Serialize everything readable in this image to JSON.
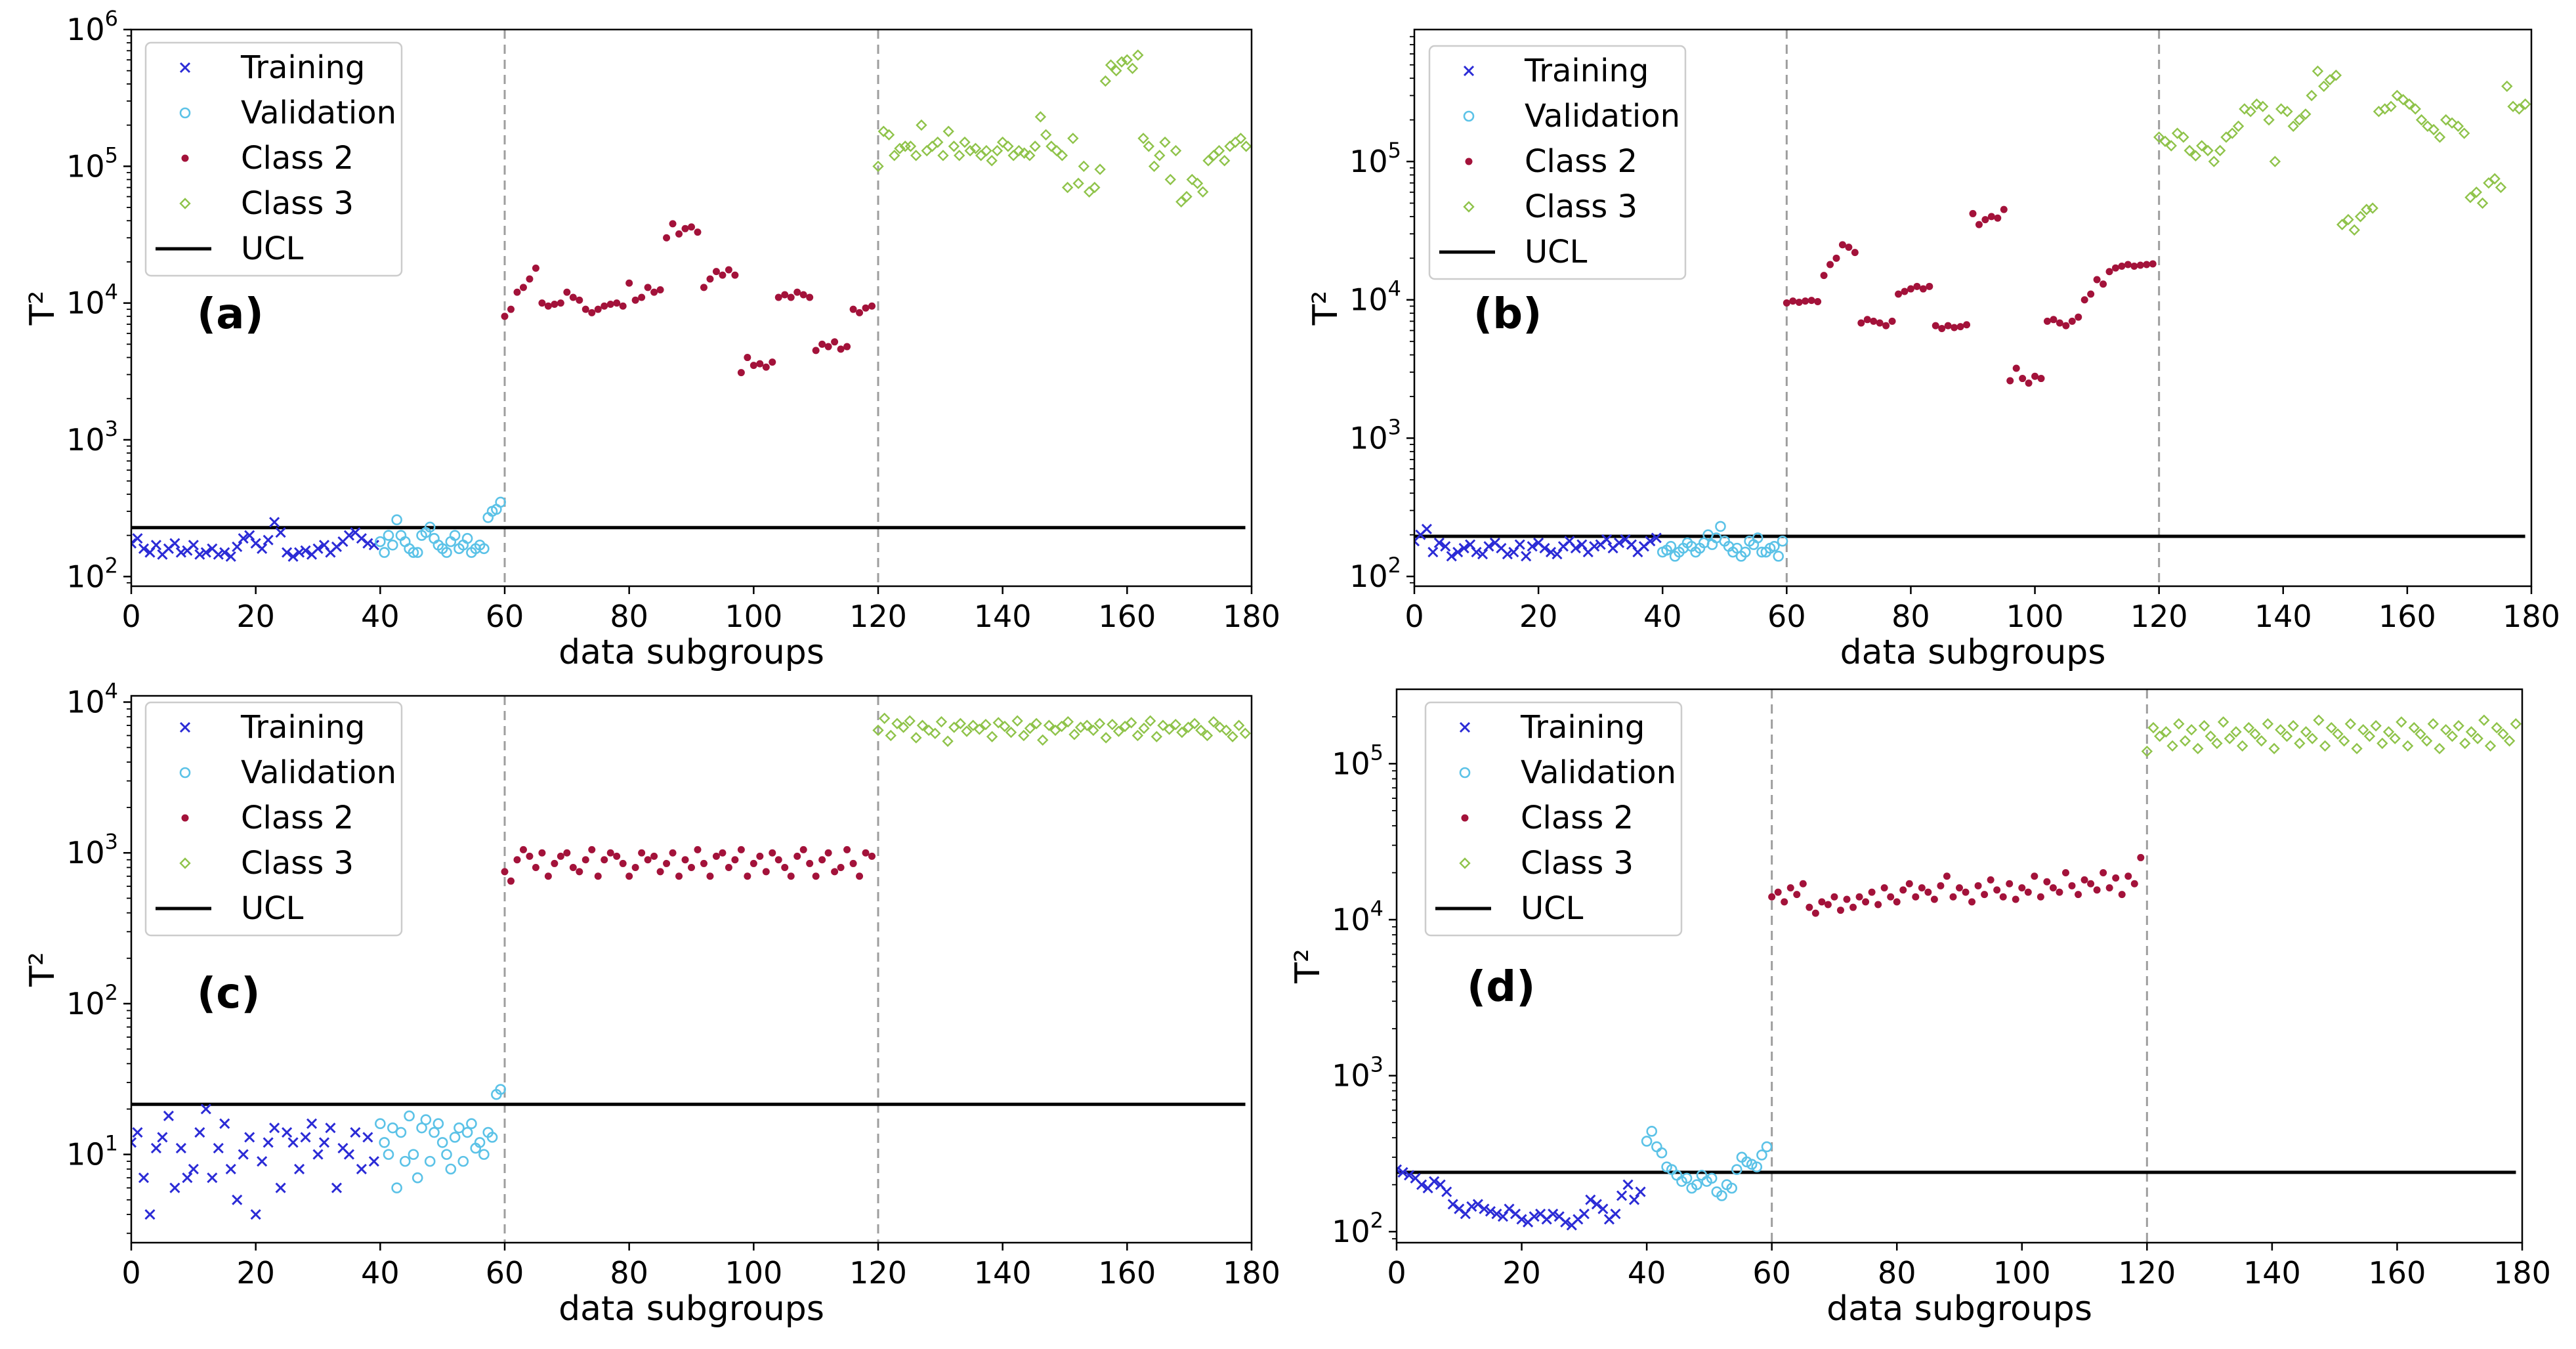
{
  "figure": {
    "xlabel": "data subgroups",
    "ylabel": "T²",
    "legend": [
      "Training",
      "Validation",
      "Class 2",
      "Class 3",
      "UCL"
    ],
    "colors": {
      "Training": "#2b2bd6",
      "Validation": "#5bc2e7",
      "Class 2": "#a3123a",
      "Class 3": "#8fc34a",
      "UCL": "#000000",
      "boundary": "#9e9e9e"
    },
    "markers": {
      "Training": "x",
      "Validation": "o",
      "Class 2": ".",
      "Class 3": "d"
    }
  },
  "chart_data": [
    {
      "type": "scatter",
      "label": "(a)",
      "yscale": "log",
      "xlim": [
        0,
        180
      ],
      "ylim": [
        85,
        1000000
      ],
      "xticks": [
        0,
        20,
        40,
        60,
        80,
        100,
        120,
        140,
        160,
        180
      ],
      "yticks": [
        {
          "value": 100,
          "base": "10",
          "exp": "2"
        },
        {
          "value": 1000,
          "base": "10",
          "exp": "3"
        },
        {
          "value": 10000,
          "base": "10",
          "exp": "4"
        },
        {
          "value": 100000,
          "base": "10",
          "exp": "5"
        },
        {
          "value": 1000000,
          "base": "10",
          "exp": "6"
        }
      ],
      "ucl": 228,
      "boundaries": [
        60,
        120
      ],
      "series": [
        {
          "name": "Training",
          "values": [
            175,
            190,
            160,
            150,
            170,
            145,
            160,
            175,
            150,
            155,
            170,
            145,
            150,
            160,
            145,
            150,
            140,
            165,
            190,
            200,
            175,
            160,
            185,
            250,
            210,
            150,
            140,
            150,
            155,
            145,
            160,
            170,
            150,
            165,
            180,
            200,
            210,
            190,
            175,
            170
          ]
        },
        {
          "name": "Validation",
          "values": [
            180,
            150,
            200,
            170,
            260,
            200,
            180,
            160,
            150,
            150,
            200,
            210,
            230,
            190,
            170,
            160,
            150,
            180,
            200,
            160,
            170,
            190,
            150,
            160,
            170,
            160,
            270,
            300,
            310,
            350
          ]
        },
        {
          "name": "Class 2",
          "values": [
            8000,
            9000,
            12000,
            13000,
            15000,
            18000,
            10000,
            9500,
            9800,
            10000,
            12000,
            11000,
            10500,
            9000,
            8500,
            9000,
            9500,
            9800,
            10000,
            9500,
            14000,
            10500,
            11000,
            13000,
            12000,
            12500,
            30000,
            38000,
            32000,
            35000,
            36000,
            33000,
            13000,
            15000,
            17000,
            16000,
            17500,
            16000,
            3100,
            4000,
            3500,
            3600,
            3400,
            3700,
            11000,
            11500,
            11000,
            12000,
            11500,
            11000,
            4500,
            5000,
            4800,
            5200,
            4600,
            4800,
            9000,
            8500,
            9200,
            9500
          ]
        },
        {
          "name": "Class 3",
          "values": [
            100000,
            180000,
            170000,
            120000,
            135000,
            140000,
            140000,
            120000,
            200000,
            130000,
            140000,
            150000,
            120000,
            180000,
            140000,
            120000,
            150000,
            130000,
            135000,
            120000,
            130000,
            110000,
            130000,
            150000,
            140000,
            120000,
            130000,
            125000,
            120000,
            140000,
            230000,
            170000,
            140000,
            130000,
            120000,
            70000,
            160000,
            75000,
            100000,
            65000,
            70000,
            95000,
            420000,
            550000,
            500000,
            580000,
            600000,
            520000,
            650000,
            160000,
            140000,
            100000,
            120000,
            150000,
            80000,
            130000,
            55000,
            60000,
            80000,
            75000,
            65000,
            110000,
            120000,
            130000,
            110000,
            140000,
            150000,
            160000,
            140000
          ]
        }
      ]
    },
    {
      "type": "scatter",
      "label": "(b)",
      "yscale": "log",
      "xlim": [
        0,
        180
      ],
      "ylim": [
        85,
        900000
      ],
      "xticks": [
        0,
        20,
        40,
        60,
        80,
        100,
        120,
        140,
        160,
        180
      ],
      "yticks": [
        {
          "value": 100,
          "base": "10",
          "exp": "2"
        },
        {
          "value": 1000,
          "base": "10",
          "exp": "3"
        },
        {
          "value": 10000,
          "base": "10",
          "exp": "4"
        },
        {
          "value": 100000,
          "base": "10",
          "exp": "5"
        }
      ],
      "ucl": 195,
      "boundaries": [
        60,
        120
      ],
      "series": [
        {
          "name": "Training",
          "values": [
            180,
            200,
            220,
            150,
            175,
            165,
            140,
            150,
            160,
            170,
            150,
            145,
            165,
            175,
            160,
            145,
            150,
            170,
            140,
            165,
            175,
            160,
            150,
            145,
            165,
            180,
            160,
            170,
            150,
            165,
            170,
            185,
            160,
            175,
            185,
            170,
            150,
            165,
            180,
            190
          ]
        },
        {
          "name": "Validation",
          "values": [
            150,
            155,
            165,
            140,
            150,
            160,
            175,
            165,
            150,
            160,
            175,
            200,
            170,
            190,
            230,
            180,
            165,
            150,
            160,
            140,
            150,
            180,
            170,
            190,
            150,
            150,
            160,
            165,
            140,
            180
          ]
        },
        {
          "name": "Class 2",
          "values": [
            9500,
            9800,
            9600,
            9800,
            9900,
            9700,
            15000,
            18000,
            20000,
            25000,
            24000,
            22000,
            6800,
            7200,
            7000,
            6800,
            6500,
            7000,
            11000,
            11500,
            12000,
            12500,
            12000,
            12500,
            6500,
            6200,
            6500,
            6300,
            6400,
            6600,
            42000,
            35000,
            38000,
            40000,
            39000,
            45000,
            2600,
            3200,
            2700,
            2500,
            2800,
            2700,
            7000,
            7200,
            6800,
            6500,
            7000,
            7500,
            10000,
            11000,
            14000,
            13000,
            16000,
            17000,
            17500,
            18000,
            17500,
            17800,
            18000,
            18200
          ]
        },
        {
          "name": "Class 3",
          "values": [
            150000,
            140000,
            130000,
            160000,
            150000,
            120000,
            110000,
            130000,
            120000,
            100000,
            120000,
            150000,
            160000,
            180000,
            240000,
            230000,
            260000,
            250000,
            200000,
            100000,
            240000,
            230000,
            180000,
            200000,
            220000,
            300000,
            450000,
            350000,
            390000,
            420000,
            35000,
            38000,
            32000,
            40000,
            45000,
            46000,
            230000,
            240000,
            250000,
            300000,
            280000,
            260000,
            240000,
            200000,
            180000,
            170000,
            150000,
            200000,
            190000,
            180000,
            160000,
            55000,
            60000,
            50000,
            70000,
            75000,
            65000,
            350000,
            250000,
            240000,
            260000
          ]
        }
      ]
    },
    {
      "type": "scatter",
      "label": "(c)",
      "yscale": "log",
      "xlim": [
        0,
        180
      ],
      "ylim": [
        2.6,
        11000
      ],
      "xticks": [
        0,
        20,
        40,
        60,
        80,
        100,
        120,
        140,
        160,
        180
      ],
      "yticks": [
        {
          "value": 10,
          "base": "10",
          "exp": "1"
        },
        {
          "value": 100,
          "base": "10",
          "exp": "2"
        },
        {
          "value": 1000,
          "base": "10",
          "exp": "3"
        },
        {
          "value": 10000,
          "base": "10",
          "exp": "4"
        }
      ],
      "ucl": 21.5,
      "boundaries": [
        60,
        120
      ],
      "series": [
        {
          "name": "Training",
          "values": [
            12,
            14,
            7,
            4,
            11,
            13,
            18,
            6,
            11,
            7,
            8,
            14,
            20,
            7,
            11,
            16,
            8,
            5,
            10,
            13,
            4,
            9,
            12,
            15,
            6,
            14,
            12,
            8,
            13,
            16,
            10,
            12,
            15,
            6,
            11,
            10,
            14,
            8,
            13,
            9
          ]
        },
        {
          "name": "Validation",
          "values": [
            16,
            12,
            10,
            15,
            6,
            14,
            9,
            18,
            10,
            7,
            15,
            17,
            9,
            14,
            16,
            12,
            10,
            8,
            13,
            15,
            9,
            14,
            16,
            11,
            12,
            10,
            14,
            13,
            25,
            27
          ]
        },
        {
          "name": "Class 2",
          "values": [
            750,
            650,
            900,
            1050,
            950,
            800,
            1000,
            700,
            850,
            950,
            1000,
            800,
            750,
            900,
            1050,
            700,
            900,
            1000,
            950,
            850,
            700,
            800,
            1000,
            900,
            950,
            750,
            850,
            1000,
            700,
            900,
            800,
            1050,
            850,
            700,
            950,
            1000,
            800,
            900,
            1050,
            700,
            850,
            950,
            750,
            1000,
            900,
            800,
            700,
            950,
            1050,
            850,
            700,
            900,
            1000,
            750,
            800,
            1050,
            850,
            700,
            1000,
            950
          ]
        },
        {
          "name": "Class 3",
          "values": [
            6500,
            7800,
            6000,
            7200,
            6800,
            7500,
            5800,
            7000,
            6500,
            6200,
            7400,
            5500,
            6800,
            7200,
            6400,
            7000,
            6600,
            7100,
            5900,
            7300,
            6900,
            6300,
            7500,
            6000,
            6700,
            7200,
            5600,
            7000,
            6500,
            6900,
            7400,
            6100,
            6800,
            7000,
            6500,
            7200,
            5800,
            7100,
            6400,
            6900,
            7300,
            6000,
            6700,
            7500,
            5900,
            7000,
            6600,
            7100,
            6300,
            6800,
            7200,
            6500,
            6000,
            7400,
            6800,
            6500,
            5900,
            7000,
            6200
          ]
        }
      ]
    },
    {
      "type": "scatter",
      "label": "(d)",
      "yscale": "log",
      "xlim": [
        0,
        180
      ],
      "ylim": [
        85,
        300000
      ],
      "xticks": [
        0,
        20,
        40,
        60,
        80,
        100,
        120,
        140,
        160,
        180
      ],
      "yticks": [
        {
          "value": 100,
          "base": "10",
          "exp": "2"
        },
        {
          "value": 1000,
          "base": "10",
          "exp": "3"
        },
        {
          "value": 10000,
          "base": "10",
          "exp": "4"
        },
        {
          "value": 100000,
          "base": "10",
          "exp": "5"
        }
      ],
      "ucl": 240,
      "boundaries": [
        60,
        120
      ],
      "series": [
        {
          "name": "Training",
          "values": [
            250,
            240,
            230,
            220,
            200,
            190,
            210,
            200,
            180,
            150,
            140,
            130,
            145,
            150,
            140,
            135,
            130,
            125,
            140,
            130,
            120,
            115,
            125,
            130,
            120,
            130,
            125,
            115,
            110,
            120,
            130,
            160,
            150,
            140,
            120,
            130,
            170,
            200,
            160,
            180
          ]
        },
        {
          "name": "Validation",
          "values": [
            380,
            440,
            350,
            320,
            260,
            250,
            230,
            210,
            220,
            190,
            200,
            230,
            210,
            220,
            180,
            170,
            200,
            190,
            250,
            300,
            280,
            270,
            260,
            310,
            350
          ]
        },
        {
          "name": "Class 2",
          "values": [
            14000,
            15000,
            13000,
            16000,
            14500,
            17000,
            12000,
            11000,
            13000,
            12500,
            14000,
            11500,
            13500,
            12000,
            14000,
            13000,
            15000,
            12500,
            16000,
            14000,
            13000,
            15500,
            17000,
            14000,
            16000,
            15000,
            13500,
            16500,
            19000,
            14000,
            16000,
            15000,
            13000,
            16500,
            14500,
            18000,
            15500,
            14000,
            17000,
            13500,
            16000,
            15000,
            19000,
            14000,
            17500,
            16000,
            15000,
            20000,
            16500,
            14500,
            18000,
            17000,
            15500,
            20000,
            16000,
            18500,
            14500,
            19000,
            17000,
            25000
          ]
        },
        {
          "name": "Class 3",
          "values": [
            120000,
            170000,
            150000,
            160000,
            130000,
            180000,
            140000,
            165000,
            125000,
            175000,
            150000,
            135000,
            185000,
            145000,
            160000,
            130000,
            170000,
            155000,
            140000,
            180000,
            125000,
            165000,
            150000,
            175000,
            135000,
            160000,
            145000,
            190000,
            130000,
            170000,
            155000,
            140000,
            180000,
            125000,
            165000,
            150000,
            175000,
            135000,
            160000,
            145000,
            185000,
            130000,
            170000,
            155000,
            140000,
            180000,
            125000,
            165000,
            150000,
            175000,
            135000,
            160000,
            145000,
            190000,
            130000,
            170000,
            155000,
            140000,
            180000
          ]
        }
      ]
    }
  ]
}
